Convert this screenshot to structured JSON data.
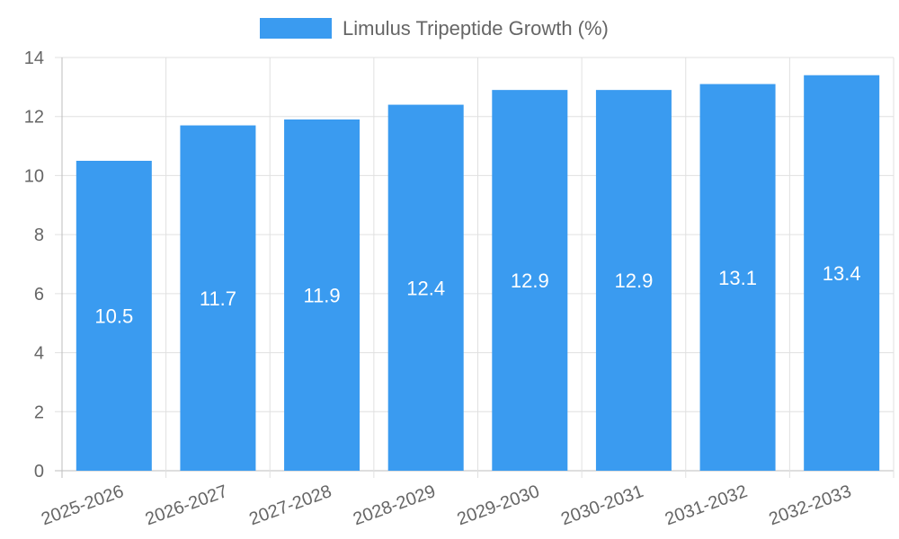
{
  "chart_data": {
    "type": "bar",
    "title": "",
    "xlabel": "",
    "ylabel": "",
    "legend": "top-center",
    "grid": true,
    "ylim": [
      0,
      14
    ],
    "yticks": [
      0,
      2,
      4,
      6,
      8,
      10,
      12,
      14
    ],
    "categories": [
      "2025-2026",
      "2026-2027",
      "2027-2028",
      "2028-2029",
      "2029-2030",
      "2030-2031",
      "2031-2032",
      "2032-2033"
    ],
    "series": [
      {
        "name": "Limulus Tripeptide Growth (%)",
        "color": "#3a9bf0",
        "values": [
          10.5,
          11.7,
          11.9,
          12.4,
          12.9,
          12.9,
          13.1,
          13.4
        ]
      }
    ]
  }
}
